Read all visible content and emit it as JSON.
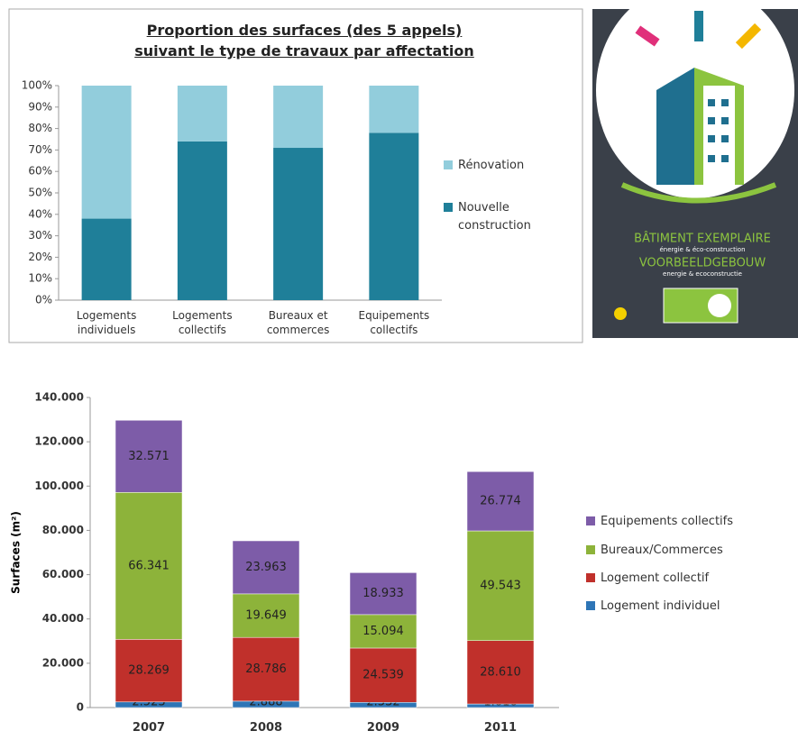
{
  "chart_data": [
    {
      "type": "stacked_bar",
      "title": "Proportion des surfaces (des 5 appels)\nsuivant le type de travaux par affectation",
      "categories": [
        "Logements individuels",
        "Logements collectifs",
        "Bureaux et commerces",
        "Equipements collectifs"
      ],
      "series": [
        {
          "name": "Nouvelle construction",
          "color": "#1f7f99",
          "values": [
            38,
            74,
            71,
            78
          ]
        },
        {
          "name": "Rénovation",
          "color": "#92cddc",
          "values": [
            62,
            26,
            29,
            22
          ]
        }
      ],
      "ylim": [
        0,
        100
      ],
      "yticks": [
        {
          "value": 0,
          "label": "0%"
        },
        {
          "value": 10,
          "label": "10%"
        },
        {
          "value": 20,
          "label": "20%"
        },
        {
          "value": 30,
          "label": "30%"
        },
        {
          "value": 40,
          "label": "40%"
        },
        {
          "value": 50,
          "label": "50%"
        },
        {
          "value": 60,
          "label": "60%"
        },
        {
          "value": 70,
          "label": "70%"
        },
        {
          "value": 80,
          "label": "80%"
        },
        {
          "value": 90,
          "label": "90%"
        },
        {
          "value": 100,
          "label": "100%"
        }
      ],
      "grid": false,
      "legend": "right"
    },
    {
      "type": "stacked_bar",
      "y_label": "Surfaces (m²)",
      "categories": [
        "2007",
        "2008",
        "2009",
        "2011"
      ],
      "series": [
        {
          "name": "Logement individuel",
          "color": "#2e75b6",
          "values": [
            2523,
            2888,
            2332,
            1616
          ],
          "value_labels": [
            "2.523",
            "2.888",
            "2.332",
            "1.616"
          ]
        },
        {
          "name": "Logement collectif",
          "color": "#c0302b",
          "values": [
            28269,
            28786,
            24539,
            28610
          ],
          "value_labels": [
            "28.269",
            "28.786",
            "24.539",
            "28.610"
          ]
        },
        {
          "name": "Bureaux/Commerces",
          "color": "#8db33a",
          "values": [
            66341,
            19649,
            15094,
            49543
          ],
          "value_labels": [
            "66.341",
            "19.649",
            "15.094",
            "49.543"
          ]
        },
        {
          "name": "Equipements collectifs",
          "color": "#7d5ca8",
          "values": [
            32571,
            23963,
            18933,
            26774
          ],
          "value_labels": [
            "32.571",
            "23.963",
            "18.933",
            "26.774"
          ]
        }
      ],
      "ylim": [
        0,
        140000
      ],
      "yticks": [
        0,
        {
          "value": 20000,
          "label": "20.000"
        },
        {
          "value": 40000,
          "label": "40.000"
        },
        {
          "value": 60000,
          "label": "60.000"
        },
        {
          "value": 80000,
          "label": "80.000"
        },
        {
          "value": 100000,
          "label": "100.000"
        },
        {
          "value": 120000,
          "label": "120.000"
        },
        {
          "value": 140000,
          "label": "140.000"
        }
      ],
      "grid": false,
      "legend": "right"
    }
  ],
  "logo": {
    "title": "BÂTIMENT EXEMPLAIRE",
    "subtitle": "énergie & éco-construction",
    "title_nl": "VOORBEELDGEBOUW",
    "subtitle_nl": "energie & ecoconstructie"
  }
}
